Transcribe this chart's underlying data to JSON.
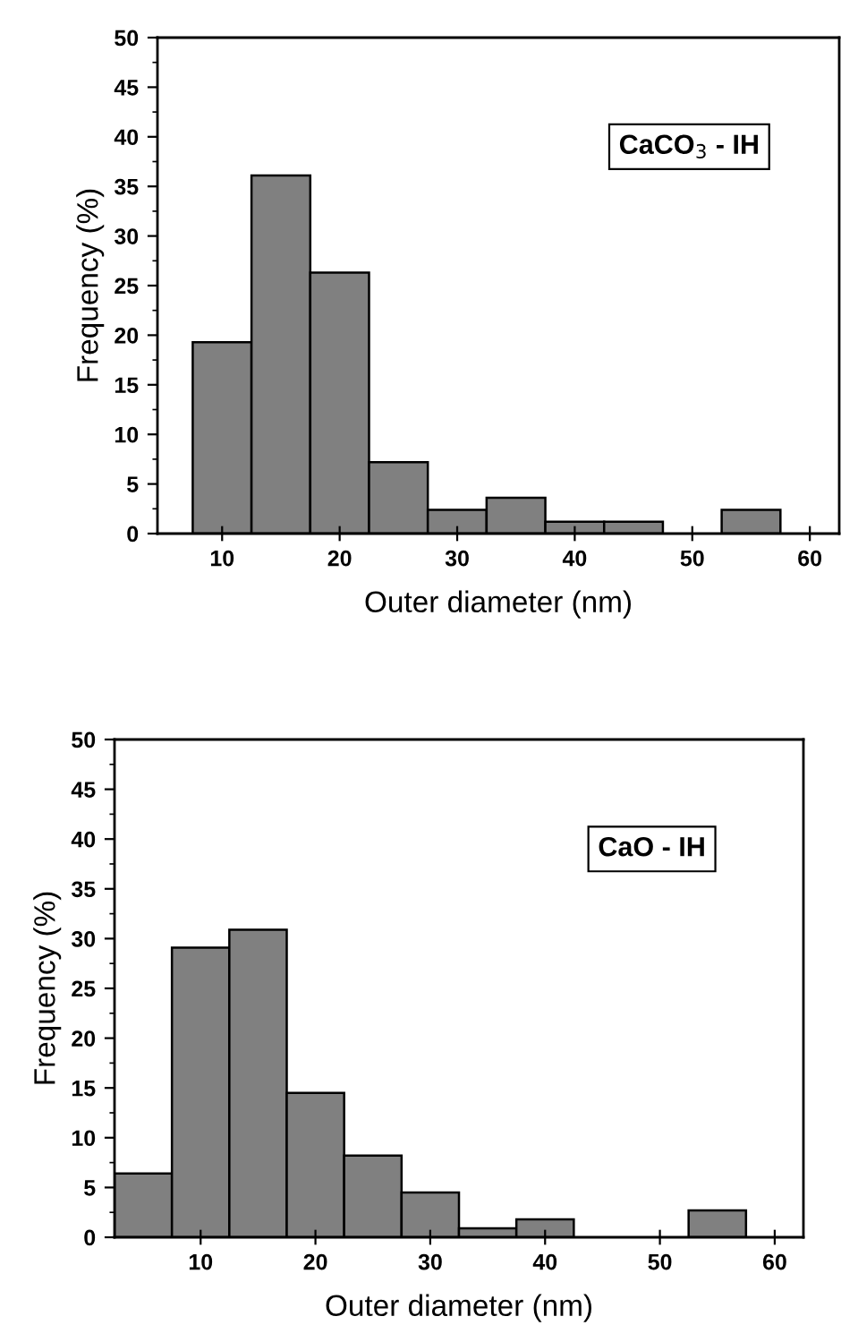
{
  "chart_data": [
    {
      "type": "histogram",
      "xlabel": "Outer diameter (nm)",
      "ylabel": "Frequency (%)",
      "annotations": [
        "CaCO$_{3}$ - IH"
      ],
      "bins": [
        7.5,
        12.5,
        17.5,
        22.5,
        27.5,
        32.5,
        37.5,
        42.5,
        47.5,
        52.5,
        57.5
      ],
      "values": [
        19.3,
        36.1,
        26.3,
        7.2,
        2.4,
        3.6,
        1.2,
        1.2,
        0,
        2.4
      ],
      "color": "#808080",
      "xlim": [
        4.5,
        62.5
      ],
      "xticks": [
        10,
        20,
        30,
        40,
        50,
        60
      ],
      "ylim": [
        0,
        50
      ],
      "yticks": [
        0,
        5,
        10,
        15,
        20,
        25,
        30,
        35,
        40,
        45,
        50
      ],
      "grid": false
    },
    {
      "type": "histogram",
      "xlabel": "Outer diameter (nm)",
      "ylabel": "Frequency (%)",
      "annotations": [
        "CaO - IH"
      ],
      "bins": [
        2.5,
        7.5,
        12.5,
        17.5,
        22.5,
        27.5,
        32.5,
        37.5,
        42.5,
        47.5,
        52.5,
        57.5
      ],
      "values": [
        6.4,
        29.1,
        30.9,
        14.5,
        8.2,
        4.5,
        0.9,
        1.8,
        0,
        0,
        2.7
      ],
      "color": "#808080",
      "xlim": [
        2.5,
        62.5
      ],
      "xticks": [
        10,
        20,
        30,
        40,
        50,
        60
      ],
      "ylim": [
        0,
        50
      ],
      "yticks": [
        0,
        5,
        10,
        15,
        20,
        25,
        30,
        35,
        40,
        45,
        50
      ],
      "grid": false
    }
  ]
}
